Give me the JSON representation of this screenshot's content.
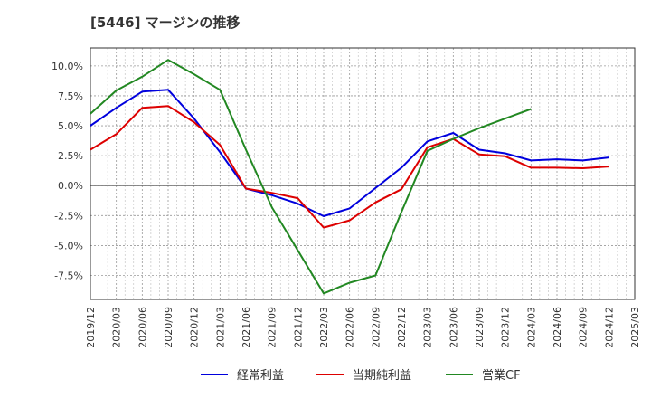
{
  "chart_data": {
    "type": "line",
    "title": "[5446]  マージンの推移",
    "xlabel": "",
    "ylabel": "",
    "ylim": [
      -9.5,
      11.5
    ],
    "grid": true,
    "legend_position": "bottom",
    "y_ticks": [
      "10.0%",
      "7.5%",
      "5.0%",
      "2.5%",
      "0.0%",
      "-2.5%",
      "-5.0%",
      "-7.5%"
    ],
    "y_tick_values": [
      10,
      7.5,
      5,
      2.5,
      0,
      -2.5,
      -5,
      -7.5
    ],
    "x": [
      "2019/12",
      "2020/03",
      "2020/06",
      "2020/09",
      "2020/12",
      "2021/03",
      "2021/06",
      "2021/09",
      "2021/12",
      "2022/03",
      "2022/06",
      "2022/09",
      "2022/12",
      "2023/03",
      "2023/06",
      "2023/09",
      "2023/12",
      "2024/03",
      "2024/06",
      "2024/09",
      "2024/12",
      "2025/03"
    ],
    "series": [
      {
        "name": "経常利益",
        "color": "#0000dd",
        "values": [
          5.0,
          6.5,
          7.85,
          8.0,
          5.6,
          2.8,
          -0.25,
          -0.8,
          -1.5,
          -2.55,
          -1.9,
          -0.2,
          1.5,
          3.7,
          4.4,
          3.0,
          2.7,
          2.1,
          2.2,
          2.1,
          2.35,
          null
        ]
      },
      {
        "name": "当期純利益",
        "color": "#dd0000",
        "values": [
          3.0,
          4.3,
          6.5,
          6.65,
          5.3,
          3.4,
          -0.25,
          -0.6,
          -1.05,
          -3.5,
          -2.9,
          -1.4,
          -0.3,
          3.2,
          3.9,
          2.6,
          2.45,
          1.5,
          1.5,
          1.45,
          1.6,
          null
        ]
      },
      {
        "name": "営業CF",
        "color": "#228822",
        "values": [
          6.0,
          7.95,
          9.1,
          10.5,
          9.3,
          8.0,
          3.0,
          -1.8,
          -5.4,
          -9.0,
          -8.1,
          -7.5,
          -2.2,
          2.9,
          3.9,
          4.8,
          5.6,
          6.4,
          null,
          null,
          null,
          null
        ]
      }
    ]
  }
}
